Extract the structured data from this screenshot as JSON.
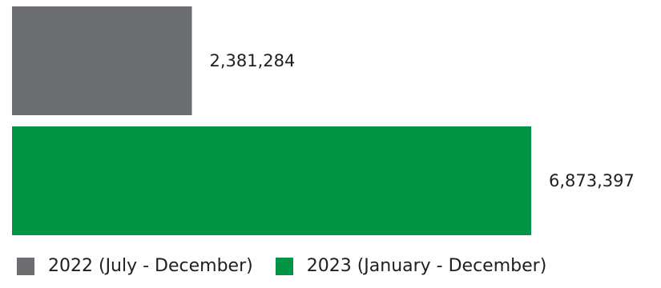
{
  "chart_data": {
    "type": "bar",
    "orientation": "horizontal",
    "categories": [
      "2022 (July - December)",
      "2023 (January - December)"
    ],
    "values": [
      2381284,
      6873397
    ],
    "value_labels": [
      "2,381,284",
      "6,873,397"
    ],
    "colors": [
      "#6d6e71",
      "#009444"
    ],
    "xlim": [
      0,
      7000000
    ],
    "grid": false,
    "legend_placement": "bottom"
  }
}
